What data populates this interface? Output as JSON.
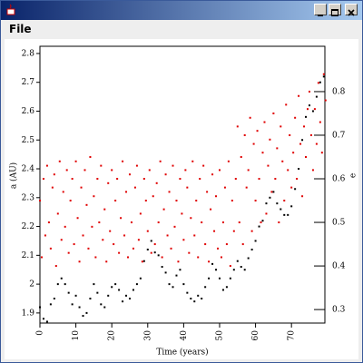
{
  "window": {
    "menu": [
      "File"
    ]
  },
  "chart_data": {
    "type": "scatter",
    "ylabel": "a (AU)",
    "y2label": "e",
    "xlabel": "Time (years)",
    "xlim": [
      0,
      79.3
    ],
    "xticks": [
      0,
      10,
      20,
      30,
      40,
      50,
      60,
      70
    ],
    "ylim": [
      1.865,
      2.825
    ],
    "yticks": [
      1.9,
      2.0,
      2.1,
      2.2,
      2.3,
      2.4,
      2.5,
      2.6,
      2.7,
      2.8
    ],
    "y2lim": [
      0.269,
      0.904
    ],
    "y2ticks": [
      0.3,
      0.4,
      0.5,
      0.6,
      0.7,
      0.8
    ],
    "series": [
      {
        "color": "#000000",
        "axis": "y",
        "x": [
          0,
          1,
          2,
          3,
          4,
          5,
          6,
          7,
          8,
          9,
          10,
          11,
          12,
          13,
          14,
          15,
          16,
          17,
          18,
          19,
          20,
          21,
          22,
          23,
          24,
          25,
          26,
          27,
          28,
          29,
          30,
          31,
          32,
          33,
          34,
          35,
          36,
          37,
          38,
          39,
          40,
          41,
          42,
          43,
          44,
          45,
          46,
          47,
          48,
          49,
          50,
          51,
          52,
          53,
          54,
          55,
          56,
          57,
          58,
          59,
          60,
          61,
          62,
          63,
          64,
          65,
          66,
          67,
          68,
          69,
          70,
          71,
          72,
          73,
          74,
          75,
          76,
          77,
          78,
          79
        ],
        "values": [
          1.92,
          1.88,
          1.87,
          1.93,
          1.95,
          2.0,
          2.02,
          2.0,
          1.97,
          1.93,
          1.96,
          1.92,
          1.89,
          1.9,
          1.95,
          2.0,
          1.97,
          1.93,
          1.92,
          1.96,
          1.99,
          2.0,
          1.98,
          1.94,
          1.96,
          1.95,
          1.98,
          2.0,
          2.02,
          2.08,
          2.12,
          2.15,
          2.11,
          2.1,
          2.06,
          2.04,
          2.0,
          1.99,
          2.03,
          2.05,
          2.0,
          1.97,
          1.95,
          1.94,
          1.96,
          1.95,
          1.99,
          2.02,
          2.07,
          2.05,
          2.02,
          1.98,
          1.99,
          2.02,
          2.05,
          2.08,
          2.06,
          2.05,
          2.09,
          2.12,
          2.15,
          2.2,
          2.22,
          2.28,
          2.3,
          2.32,
          2.28,
          2.26,
          2.24,
          2.24,
          2.27,
          2.33,
          2.4,
          2.5,
          2.58,
          2.62,
          2.6,
          2.65,
          2.7,
          2.72
        ]
      },
      {
        "color": "#e00000",
        "axis": "y2",
        "x": [
          0,
          0.5,
          1,
          1.5,
          2,
          2.5,
          3,
          3.5,
          4,
          4.5,
          5,
          5.5,
          6,
          6.5,
          7,
          7.5,
          8,
          8.5,
          9,
          9.5,
          10,
          10.5,
          11,
          11.5,
          12,
          12.5,
          13,
          13.5,
          14,
          14.5,
          15,
          15.5,
          16,
          16.5,
          17,
          17.5,
          18,
          18.5,
          19,
          19.5,
          20,
          20.5,
          21,
          21.5,
          22,
          22.5,
          23,
          23.5,
          24,
          24.5,
          25,
          25.5,
          26,
          26.5,
          27,
          27.5,
          28,
          28.5,
          29,
          29.5,
          30,
          30.5,
          31,
          31.5,
          32,
          32.5,
          33,
          33.5,
          34,
          34.5,
          35,
          35.5,
          36,
          36.5,
          37,
          37.5,
          38,
          38.5,
          39,
          39.5,
          40,
          40.5,
          41,
          41.5,
          42,
          42.5,
          43,
          43.5,
          44,
          44.5,
          45,
          45.5,
          46,
          46.5,
          47,
          47.5,
          48,
          48.5,
          49,
          49.5,
          50,
          50.5,
          51,
          51.5,
          52,
          52.5,
          53,
          53.5,
          54,
          54.5,
          55,
          55.5,
          56,
          56.5,
          57,
          57.5,
          58,
          58.5,
          59,
          59.5,
          60,
          60.5,
          61,
          61.5,
          62,
          62.5,
          63,
          63.5,
          64,
          64.5,
          65,
          65.5,
          66,
          66.5,
          67,
          67.5,
          68,
          68.5,
          69,
          69.5,
          70,
          70.5,
          71,
          71.5,
          72,
          72.5,
          73,
          73.5,
          74,
          74.5,
          75,
          75.5,
          76,
          76.5,
          77,
          77.5,
          78,
          78.5,
          79,
          79.5
        ],
        "values": [
          0.55,
          0.42,
          0.6,
          0.47,
          0.63,
          0.5,
          0.44,
          0.58,
          0.61,
          0.4,
          0.52,
          0.64,
          0.46,
          0.57,
          0.49,
          0.62,
          0.43,
          0.55,
          0.6,
          0.45,
          0.64,
          0.51,
          0.41,
          0.58,
          0.47,
          0.62,
          0.54,
          0.44,
          0.65,
          0.49,
          0.56,
          0.42,
          0.6,
          0.5,
          0.63,
          0.46,
          0.53,
          0.41,
          0.59,
          0.48,
          0.62,
          0.45,
          0.55,
          0.6,
          0.43,
          0.51,
          0.64,
          0.47,
          0.57,
          0.42,
          0.61,
          0.5,
          0.44,
          0.58,
          0.63,
          0.46,
          0.52,
          0.41,
          0.6,
          0.55,
          0.48,
          0.62,
          0.43,
          0.56,
          0.45,
          0.59,
          0.5,
          0.64,
          0.42,
          0.53,
          0.61,
          0.47,
          0.57,
          0.44,
          0.63,
          0.49,
          0.55,
          0.41,
          0.6,
          0.52,
          0.46,
          0.62,
          0.58,
          0.43,
          0.51,
          0.64,
          0.47,
          0.55,
          0.42,
          0.6,
          0.5,
          0.63,
          0.45,
          0.57,
          0.41,
          0.53,
          0.61,
          0.48,
          0.56,
          0.44,
          0.62,
          0.42,
          0.5,
          0.58,
          0.45,
          0.64,
          0.4,
          0.55,
          0.48,
          0.6,
          0.72,
          0.5,
          0.65,
          0.45,
          0.7,
          0.58,
          0.62,
          0.74,
          0.48,
          0.68,
          0.55,
          0.71,
          0.6,
          0.5,
          0.66,
          0.73,
          0.52,
          0.63,
          0.69,
          0.57,
          0.75,
          0.6,
          0.67,
          0.5,
          0.72,
          0.64,
          0.55,
          0.77,
          0.62,
          0.7,
          0.58,
          0.66,
          0.74,
          0.6,
          0.79,
          0.68,
          0.56,
          0.72,
          0.65,
          0.76,
          0.8,
          0.7,
          0.62,
          0.76,
          0.68,
          0.82,
          0.73,
          0.66,
          0.84,
          0.78
        ]
      }
    ]
  }
}
